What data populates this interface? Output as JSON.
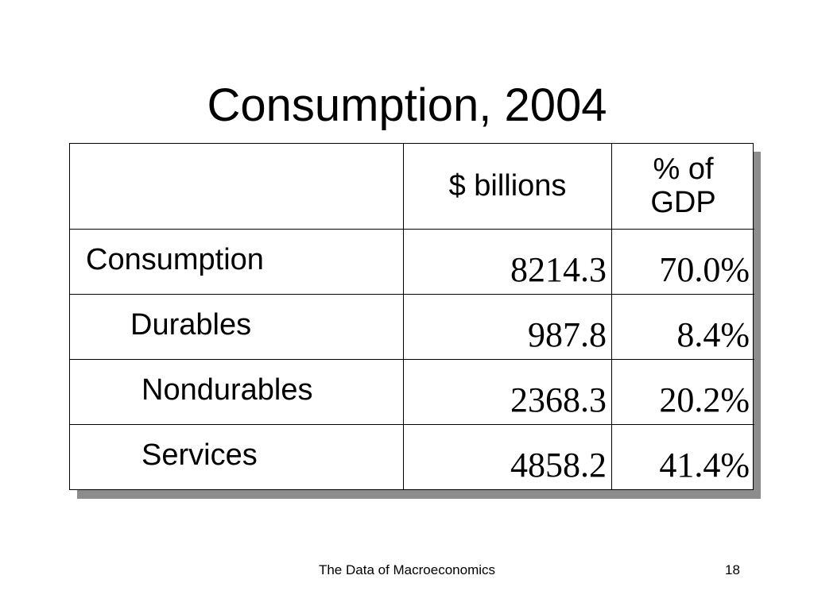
{
  "slide": {
    "title": "Consumption, 2004",
    "footer": "The Data of Macroeconomics",
    "page_number": "18"
  },
  "table": {
    "header": {
      "blank": "",
      "billions": "$ billions",
      "pct_line1": "% of",
      "pct_line2": "GDP"
    },
    "rows": [
      {
        "label": "Consumption",
        "billions": "8214.3",
        "pct": "70.0%"
      },
      {
        "label": "Durables",
        "billions": "987.8",
        "pct": "8.4%"
      },
      {
        "label": "Nondurables",
        "billions": "2368.3",
        "pct": "20.2%"
      },
      {
        "label": "Services",
        "billions": "4858.2",
        "pct": "41.4%"
      }
    ]
  }
}
